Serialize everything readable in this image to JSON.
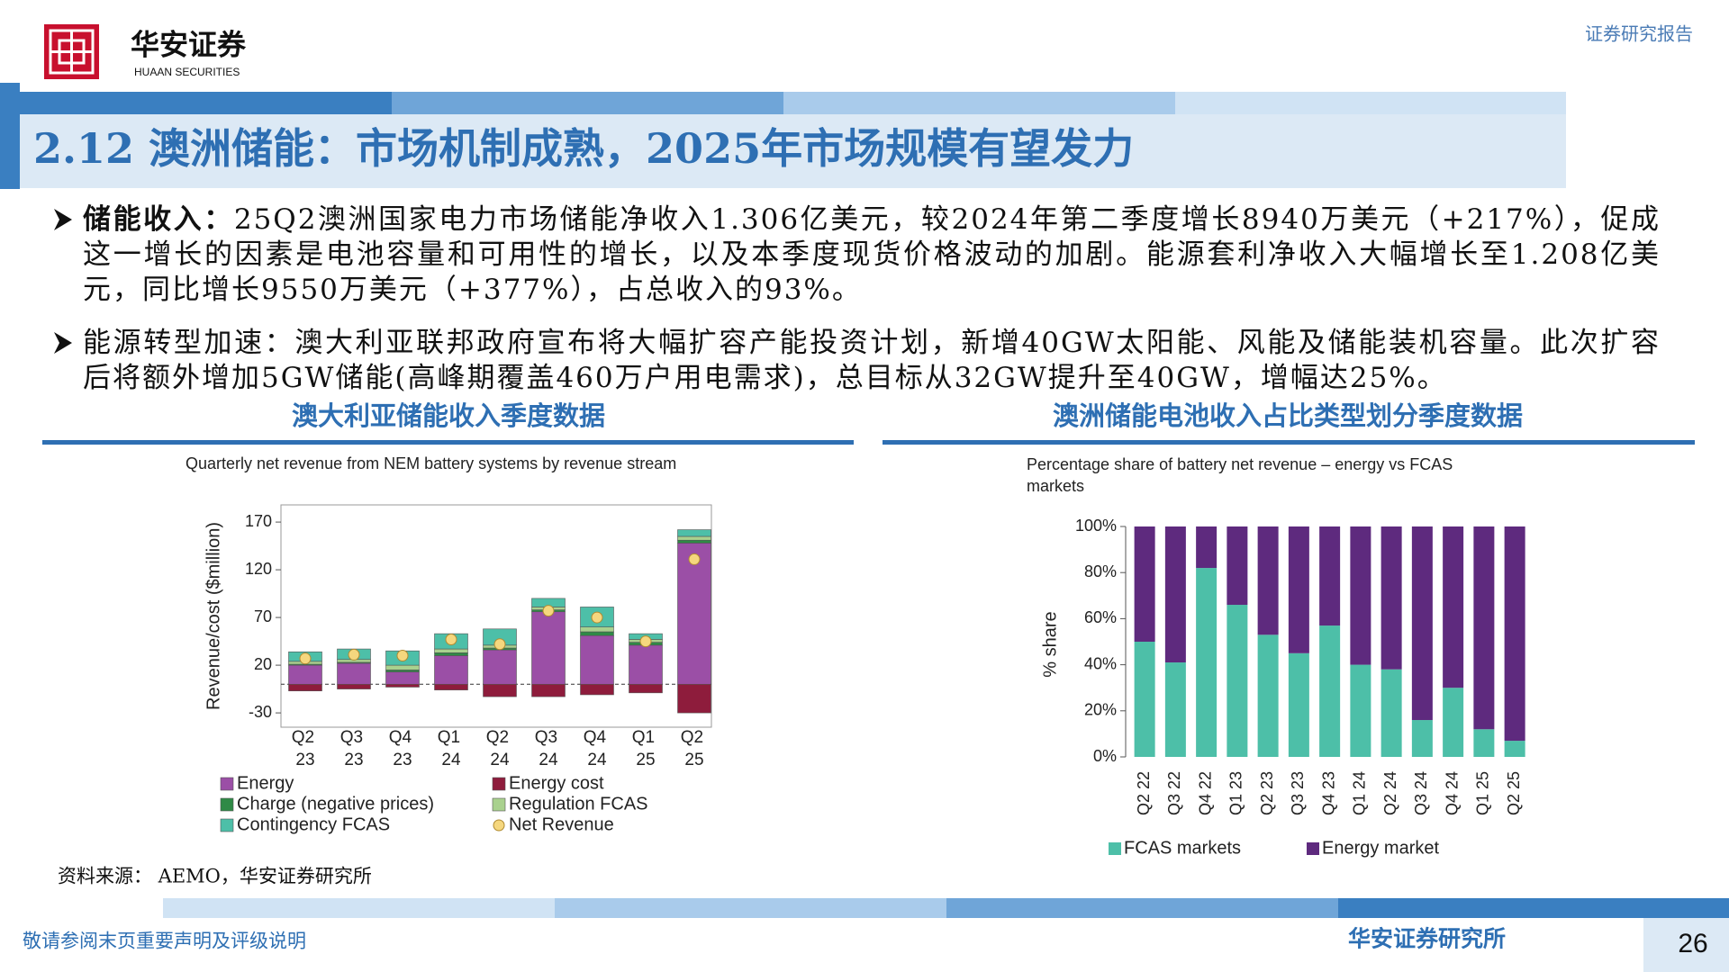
{
  "header": {
    "logo_text": "华安证券",
    "logo_sub": "HUAAN SECURITIES",
    "report_type": "证券研究报告"
  },
  "title": "2.12 澳洲储能：市场机制成熟，2025年市场规模有望发力",
  "bullets": [
    {
      "label": "储能收入：",
      "text": "25Q2澳洲国家电力市场储能净收入1.306亿美元，较2024年第二季度增长8940万美元（+217%），促成这一增长的因素是电池容量和可用性的增长，以及本季度现货价格波动的加剧。能源套利净收入大幅增长至1.208亿美元，同比增长9550万美元（+377%），占总收入的93%。"
    },
    {
      "text": "能源转型加速：澳大利亚联邦政府宣布将大幅扩容产能投资计划，新增40GW太阳能、风能及储能装机容量。此次扩容后将额外增加5GW储能(高峰期覆盖460万户用电需求)，总目标从32GW提升至40GW，增幅达25%。"
    }
  ],
  "chart_captions": [
    "澳大利亚储能收入季度数据",
    "澳洲储能电池收入占比类型划分季度数据"
  ],
  "chart_data": [
    {
      "type": "bar",
      "stacked": true,
      "title": "Quarterly net revenue from NEM battery systems by revenue stream",
      "y_label": "Revenue/cost ($million)",
      "categories": [
        "Q2 23",
        "Q3 23",
        "Q4 23",
        "Q1 24",
        "Q2 24",
        "Q3 24",
        "Q4 24",
        "Q1 25",
        "Q2 25"
      ],
      "series": [
        {
          "name": "Energy",
          "color": "#9b4fa6",
          "values": [
            20,
            22,
            13,
            30,
            36,
            76,
            51,
            41,
            148
          ]
        },
        {
          "name": "Energy cost",
          "color": "#8e1c3c",
          "values": [
            -7,
            -5,
            -3,
            -6,
            -13,
            -13,
            -11,
            -9,
            -30
          ]
        },
        {
          "name": "Charge (negative prices)",
          "color": "#2f8a46",
          "values": [
            1,
            1,
            2,
            3,
            2,
            2,
            4,
            3,
            3
          ]
        },
        {
          "name": "Regulation FCAS",
          "color": "#a9d18e",
          "values": [
            3,
            3,
            5,
            4,
            3,
            3,
            5,
            3,
            4
          ]
        },
        {
          "name": "Contingency FCAS",
          "color": "#4dbfa8",
          "values": [
            10,
            11,
            15,
            16,
            17,
            9,
            21,
            6,
            7
          ]
        },
        {
          "name": "Net Revenue",
          "type": "point",
          "color": "#f5d77e",
          "values": [
            27,
            31,
            30,
            47,
            42,
            77,
            70,
            45,
            131
          ]
        }
      ],
      "ylim": [
        -45,
        188
      ],
      "yticks": [
        -30,
        20,
        70,
        120,
        170
      ]
    },
    {
      "type": "bar",
      "stacked": true,
      "title": "Percentage share of battery net revenue – energy vs FCAS markets",
      "y_label": "% share",
      "categories": [
        "Q2 22",
        "Q3 22",
        "Q4 22",
        "Q1 23",
        "Q2 23",
        "Q3 23",
        "Q4 23",
        "Q1 24",
        "Q2 24",
        "Q3 24",
        "Q4 24",
        "Q1 25",
        "Q2 25"
      ],
      "series": [
        {
          "name": "FCAS markets",
          "color": "#4dbfa8",
          "values": [
            50,
            41,
            82,
            66,
            53,
            45,
            57,
            40,
            38,
            16,
            30,
            12,
            7
          ]
        },
        {
          "name": "Energy market",
          "color": "#5e2a7e",
          "values": [
            50,
            59,
            18,
            34,
            47,
            55,
            43,
            60,
            62,
            84,
            70,
            88,
            93
          ]
        }
      ],
      "ylim": [
        0,
        100
      ],
      "yticks": [
        {
          "value": 0,
          "label": "0%"
        },
        {
          "value": 20,
          "label": "20%"
        },
        {
          "value": 40,
          "label": "40%"
        },
        {
          "value": 60,
          "label": "60%"
        },
        {
          "value": 80,
          "label": "80%"
        },
        {
          "value": 100,
          "label": "100%"
        }
      ]
    }
  ],
  "source": "资料来源： AEMO，华安证券研究所",
  "footer": {
    "disclaimer": "敬请参阅末页重要声明及评级说明",
    "org": "华安证券研究所",
    "page": "26"
  }
}
